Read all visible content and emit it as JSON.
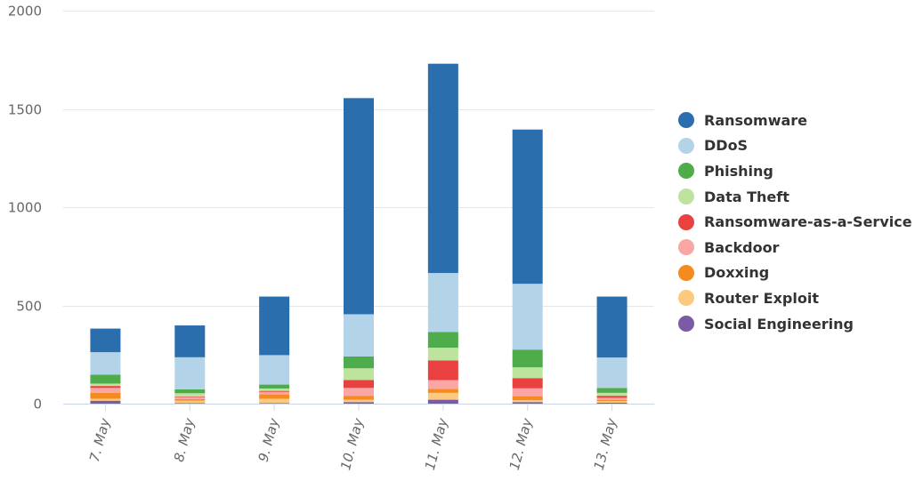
{
  "chart_data": {
    "type": "bar",
    "stacked": true,
    "categories": [
      "7. May",
      "8. May",
      "9. May",
      "10. May",
      "11. May",
      "12. May",
      "13. May"
    ],
    "ylim": [
      0,
      2000
    ],
    "y_ticks": [
      "0",
      "500",
      "1000",
      "1500",
      "2000"
    ],
    "grid": true,
    "legend_position": "right",
    "series": [
      {
        "name": "Social Engineering",
        "color": "#7b5aa6",
        "values": [
          15,
          3,
          3,
          8,
          20,
          8,
          5
        ]
      },
      {
        "name": "Router Exploit",
        "color": "#fdc97e",
        "values": [
          10,
          12,
          22,
          12,
          35,
          10,
          8
        ]
      },
      {
        "name": "Doxxing",
        "color": "#f58a1f",
        "values": [
          30,
          8,
          22,
          20,
          20,
          20,
          5
        ]
      },
      {
        "name": "Backdoor",
        "color": "#f9a6a5",
        "values": [
          25,
          10,
          13,
          40,
          45,
          40,
          12
        ]
      },
      {
        "name": "Ransomware-as-a-Service",
        "color": "#e8413f",
        "values": [
          10,
          3,
          5,
          40,
          100,
          52,
          10
        ]
      },
      {
        "name": "Data Theft",
        "color": "#bde39e",
        "values": [
          12,
          17,
          12,
          60,
          65,
          55,
          15
        ]
      },
      {
        "name": "Phishing",
        "color": "#4ead4a",
        "values": [
          45,
          20,
          20,
          60,
          80,
          90,
          25
        ]
      },
      {
        "name": "DDoS",
        "color": "#b2d3e8",
        "values": [
          115,
          163,
          150,
          215,
          300,
          335,
          155
        ]
      },
      {
        "name": "Ransomware",
        "color": "#2b6ead",
        "values": [
          120,
          162,
          298,
          1100,
          1065,
          785,
          310
        ]
      }
    ],
    "legend_order": [
      "Ransomware",
      "DDoS",
      "Phishing",
      "Data Theft",
      "Ransomware-as-a-Service",
      "Backdoor",
      "Doxxing",
      "Router Exploit",
      "Social Engineering"
    ]
  }
}
